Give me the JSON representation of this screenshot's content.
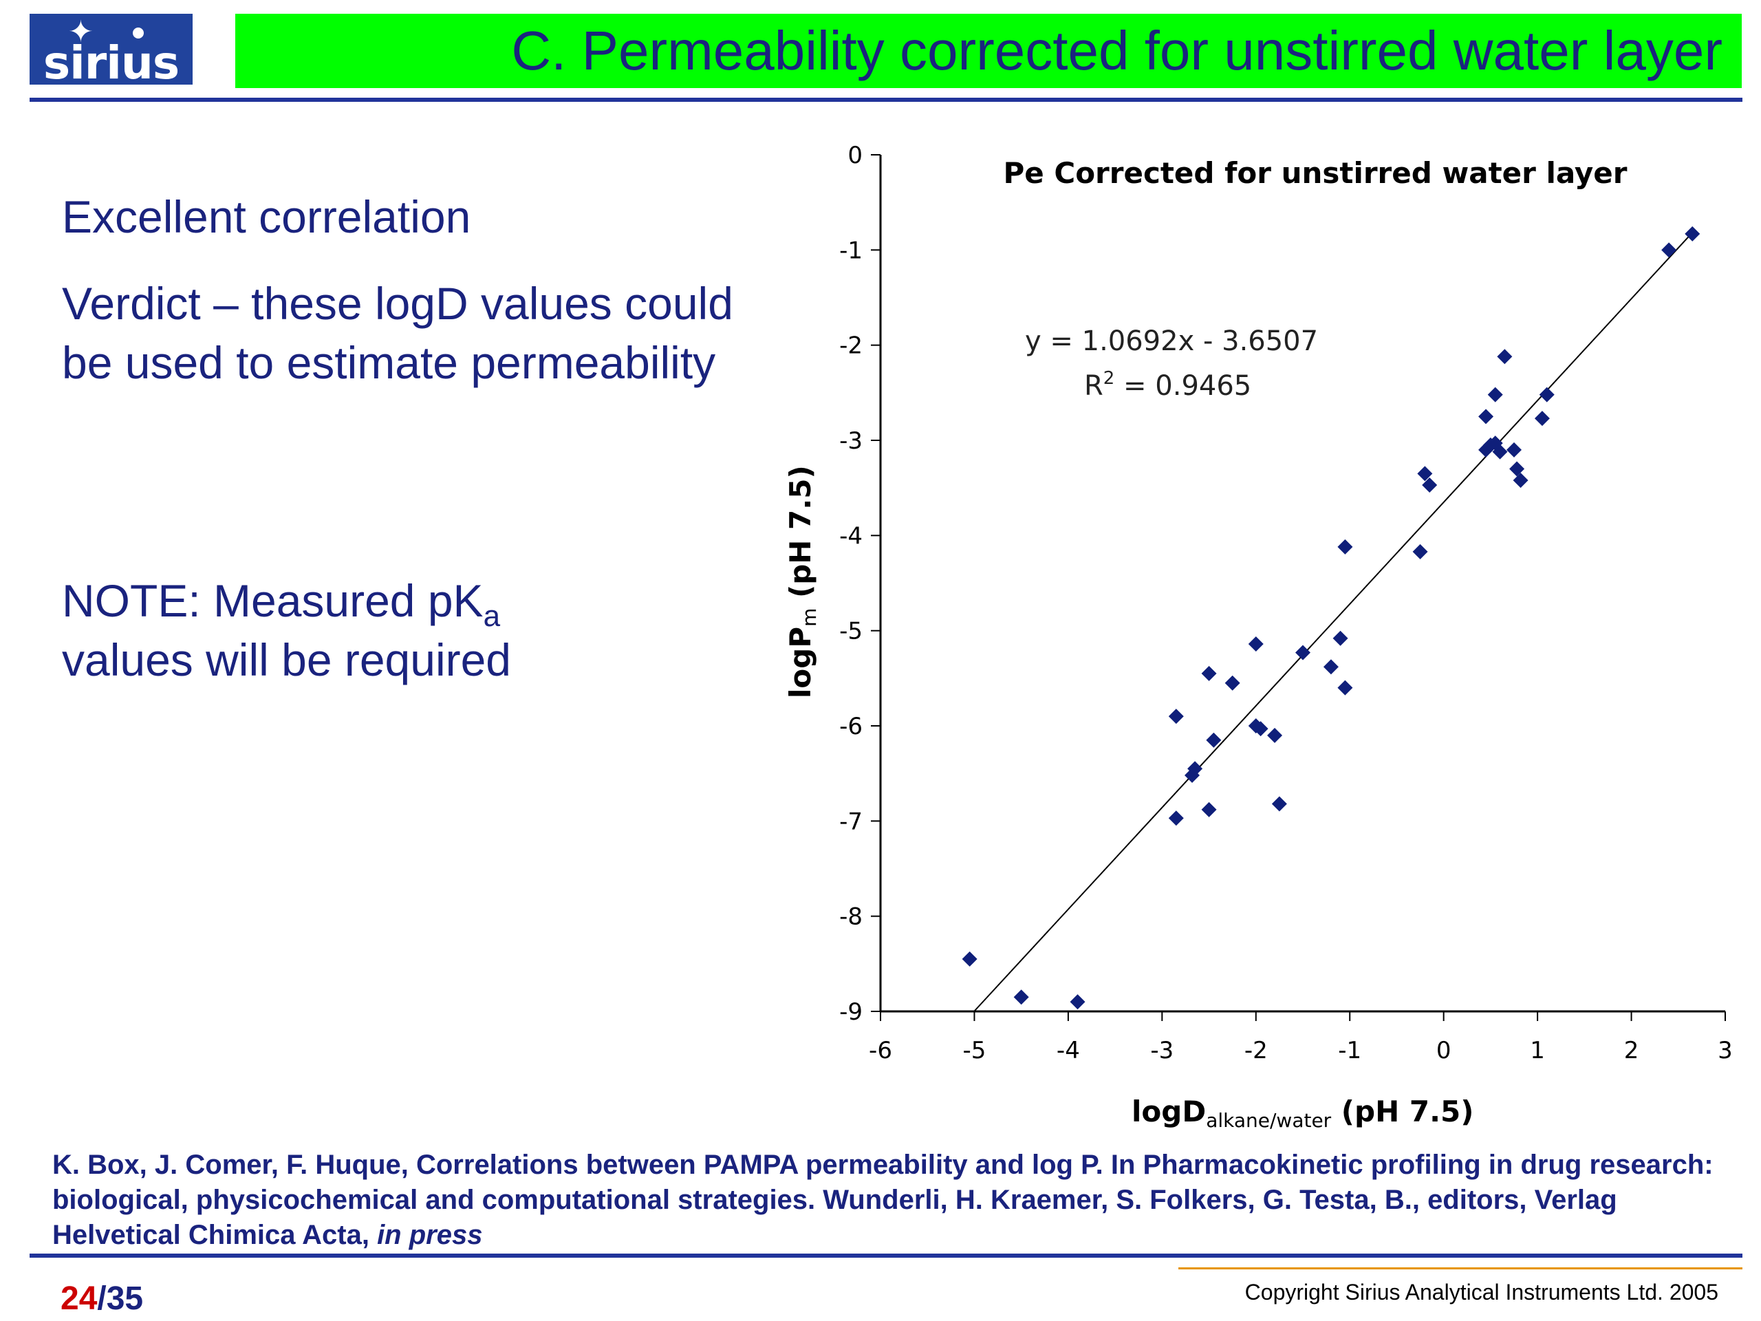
{
  "header": {
    "logo_text": "sirius",
    "title": "C. Permeability corrected for unstirred water layer"
  },
  "body": {
    "bullet_1": "Excellent correlation",
    "bullet_2": "Verdict – these logD values could be used to estimate permeability",
    "note_main": "NOTE: Measured pK",
    "note_sub": "a",
    "note_end": "values will be required"
  },
  "chart_data": {
    "type": "scatter",
    "title": "Pe Corrected for unstirred water layer",
    "xlabel_main": "logD",
    "xlabel_sub": "alkane/water",
    "xlabel_end": " (pH 7.5)",
    "ylabel_main": "logP",
    "ylabel_sub": "m",
    "ylabel_end": " (pH 7.5)",
    "xlim": [
      -6,
      3
    ],
    "ylim": [
      -9,
      0
    ],
    "xticks": [
      -6,
      -5,
      -4,
      -3,
      -2,
      -1,
      0,
      1,
      2,
      3
    ],
    "yticks": [
      0,
      -1,
      -2,
      -3,
      -4,
      -5,
      -6,
      -7,
      -8,
      -9
    ],
    "grid": false,
    "legend": "none",
    "point_color": "#0f1f7a",
    "trendline": {
      "slope": 1.0692,
      "intercept": -3.6507,
      "equation": "y = 1.0692x - 3.6507",
      "r2_label": "R",
      "r2_sup": "2",
      "r2_value": " = 0.9465"
    },
    "points": [
      [
        2.65,
        -0.83
      ],
      [
        2.4,
        -1.0
      ],
      [
        0.65,
        -2.12
      ],
      [
        0.55,
        -2.52
      ],
      [
        0.45,
        -2.75
      ],
      [
        1.1,
        -2.52
      ],
      [
        1.05,
        -2.77
      ],
      [
        0.45,
        -3.1
      ],
      [
        0.5,
        -3.05
      ],
      [
        0.55,
        -3.03
      ],
      [
        0.6,
        -3.12
      ],
      [
        0.75,
        -3.1
      ],
      [
        0.78,
        -3.3
      ],
      [
        0.82,
        -3.42
      ],
      [
        -0.2,
        -3.35
      ],
      [
        -0.15,
        -3.47
      ],
      [
        -0.25,
        -4.17
      ],
      [
        -1.05,
        -4.12
      ],
      [
        -1.1,
        -5.08
      ],
      [
        -1.05,
        -5.6
      ],
      [
        -1.2,
        -5.38
      ],
      [
        -1.5,
        -5.23
      ],
      [
        -2.0,
        -5.14
      ],
      [
        -2.25,
        -5.55
      ],
      [
        -2.5,
        -5.45
      ],
      [
        -2.45,
        -6.15
      ],
      [
        -2.0,
        -6.0
      ],
      [
        -1.95,
        -6.03
      ],
      [
        -1.8,
        -6.1
      ],
      [
        -2.85,
        -5.9
      ],
      [
        -2.65,
        -6.45
      ],
      [
        -2.68,
        -6.52
      ],
      [
        -2.5,
        -6.88
      ],
      [
        -2.85,
        -6.97
      ],
      [
        -1.75,
        -6.82
      ],
      [
        -5.05,
        -8.45
      ],
      [
        -4.5,
        -8.85
      ],
      [
        -3.9,
        -8.9
      ]
    ]
  },
  "reference": {
    "text": "K. Box, J. Comer, F. Huque, Correlations between PAMPA permeability and log P. In Pharmacokinetic profiling in drug research: biological, physicochemical and computational strategies. Wunderli, H. Kraemer, S. Folkers, G. Testa, B., editors, Verlag Helvetical Chimica Acta,",
    "italic": "in press"
  },
  "footer": {
    "page_current": "24",
    "page_total": "/35",
    "copyright": "Copyright Sirius Analytical Instruments Ltd. 2005"
  }
}
